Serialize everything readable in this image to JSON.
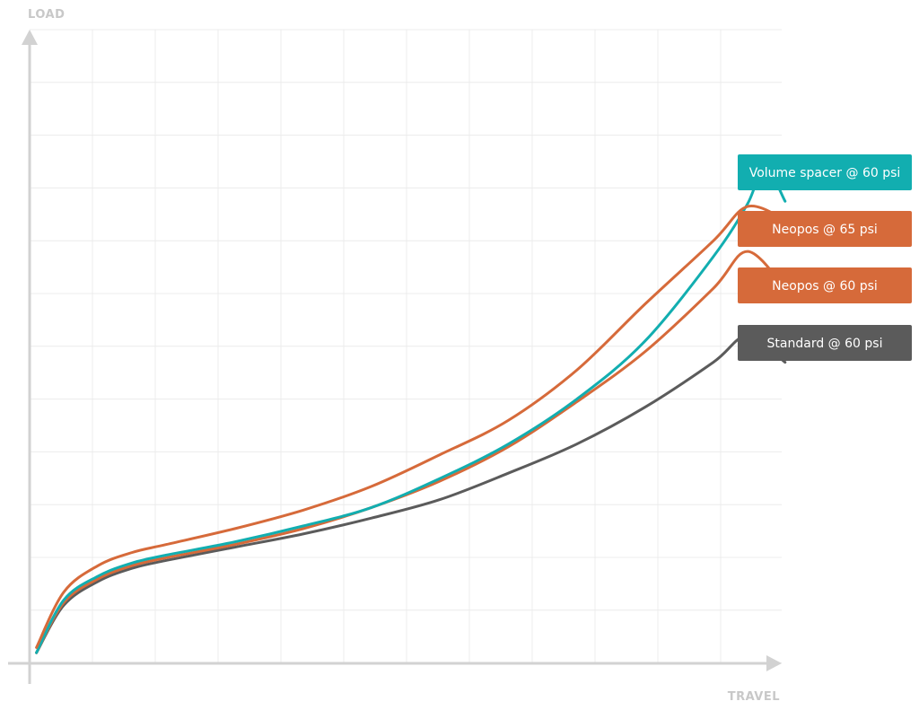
{
  "chart_data": {
    "type": "line",
    "xlabel": "TRAVEL",
    "ylabel": "LOAD",
    "xlim": [
      0,
      11
    ],
    "ylim": [
      0,
      12
    ],
    "grid": true,
    "legend_position": "right",
    "series": [
      {
        "name": "Volume spacer @ 60 psi",
        "color": "#12aeb0",
        "x": [
          0.1,
          0.5,
          1,
          1.5,
          2,
          3,
          4,
          5,
          6,
          7,
          8,
          9,
          10,
          10.5,
          10.75,
          11.05
        ],
        "y": [
          0.2,
          1.2,
          1.65,
          1.9,
          2.05,
          2.3,
          2.6,
          2.95,
          3.5,
          4.15,
          5.0,
          6.1,
          7.7,
          8.7,
          9.4,
          8.75
        ]
      },
      {
        "name": "Neopos @ 65 psi",
        "color": "#d66a3a",
        "x": [
          0.1,
          0.5,
          1,
          1.5,
          2,
          3,
          4,
          5,
          6,
          7,
          8,
          9,
          10,
          10.5,
          11.05
        ],
        "y": [
          0.3,
          1.35,
          1.85,
          2.1,
          2.25,
          2.55,
          2.9,
          3.35,
          3.95,
          4.6,
          5.55,
          6.8,
          8.0,
          8.65,
          8.4
        ]
      },
      {
        "name": "Neopos @ 60 psi",
        "color": "#d66a3a",
        "x": [
          0.1,
          0.5,
          1,
          1.5,
          2,
          3,
          4,
          5,
          6,
          7,
          8,
          9,
          10,
          10.5,
          11.05
        ],
        "y": [
          0.2,
          1.15,
          1.6,
          1.85,
          2.0,
          2.25,
          2.55,
          2.95,
          3.45,
          4.1,
          4.95,
          5.9,
          7.1,
          7.8,
          7.1
        ]
      },
      {
        "name": "Standard @ 60 psi",
        "color": "#5b5b5b",
        "x": [
          0.1,
          0.5,
          1,
          1.5,
          2,
          3,
          4,
          5,
          6,
          7,
          8,
          9,
          10,
          10.5,
          11.05
        ],
        "y": [
          0.2,
          1.1,
          1.55,
          1.8,
          1.95,
          2.2,
          2.45,
          2.75,
          3.1,
          3.6,
          4.15,
          4.85,
          5.7,
          6.2,
          5.7
        ]
      }
    ]
  }
}
